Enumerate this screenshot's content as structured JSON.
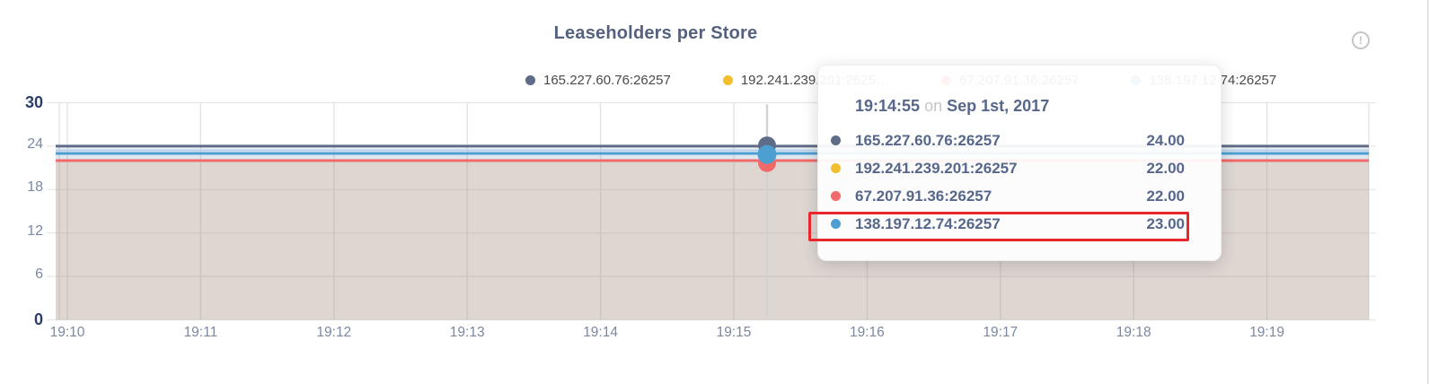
{
  "panel": {
    "title": "Leaseholders per Store",
    "info_glyph": "!"
  },
  "chart_data": {
    "type": "line",
    "title": "Leaseholders per Store",
    "x_tick_labels": [
      "19:10",
      "19:11",
      "19:12",
      "19:13",
      "19:14",
      "19:15",
      "19:16",
      "19:17",
      "19:18",
      "19:19"
    ],
    "y_ticks": [
      0,
      6,
      12,
      18,
      24,
      30
    ],
    "ylim": [
      0,
      30
    ],
    "grid": true,
    "legend_position": "top",
    "area_fill_opacity": 0.1,
    "series": [
      {
        "name": "165.227.60.76:26257",
        "legend_label": "165.227.60.76:26257",
        "color": "#5F6C87",
        "value": 24
      },
      {
        "name": "192.241.239.201:26257",
        "legend_label": "192.241.239.201:2625…",
        "color": "#F2BE2C",
        "value": 22
      },
      {
        "name": "67.207.91.36:26257",
        "legend_label": "67.207.91.36:26257",
        "color": "#F16969",
        "value": 22
      },
      {
        "name": "138.197.12.74:26257",
        "legend_label": "138.197.12.74:26257",
        "color": "#4E9FD1",
        "value": 23
      }
    ],
    "hover_time": "19:14:55"
  },
  "tooltip": {
    "time": "19:14:55",
    "conjunction": "on",
    "date": "Sep 1st, 2017",
    "rows": [
      {
        "label": "165.227.60.76:26257",
        "value": "24.00",
        "color": "#5F6C87",
        "highlighted": false
      },
      {
        "label": "192.241.239.201:26257",
        "value": "22.00",
        "color": "#F2BE2C",
        "highlighted": false
      },
      {
        "label": "67.207.91.36:26257",
        "value": "22.00",
        "color": "#F16969",
        "highlighted": false
      },
      {
        "label": "138.197.12.74:26257",
        "value": "23.00",
        "color": "#4E9FD1",
        "highlighted": true
      }
    ],
    "highlight_color": "#e8262b"
  },
  "colors": {
    "title_text": "#55617f",
    "axis_label": "#7b88a3",
    "axis_label_emphasis": "#2c3e68",
    "legend_text": "#4a4a4a",
    "tooltip_text": "#56678b",
    "combined_area_fill": "#e0d8d2",
    "hover_line": "#d2d2d2"
  }
}
